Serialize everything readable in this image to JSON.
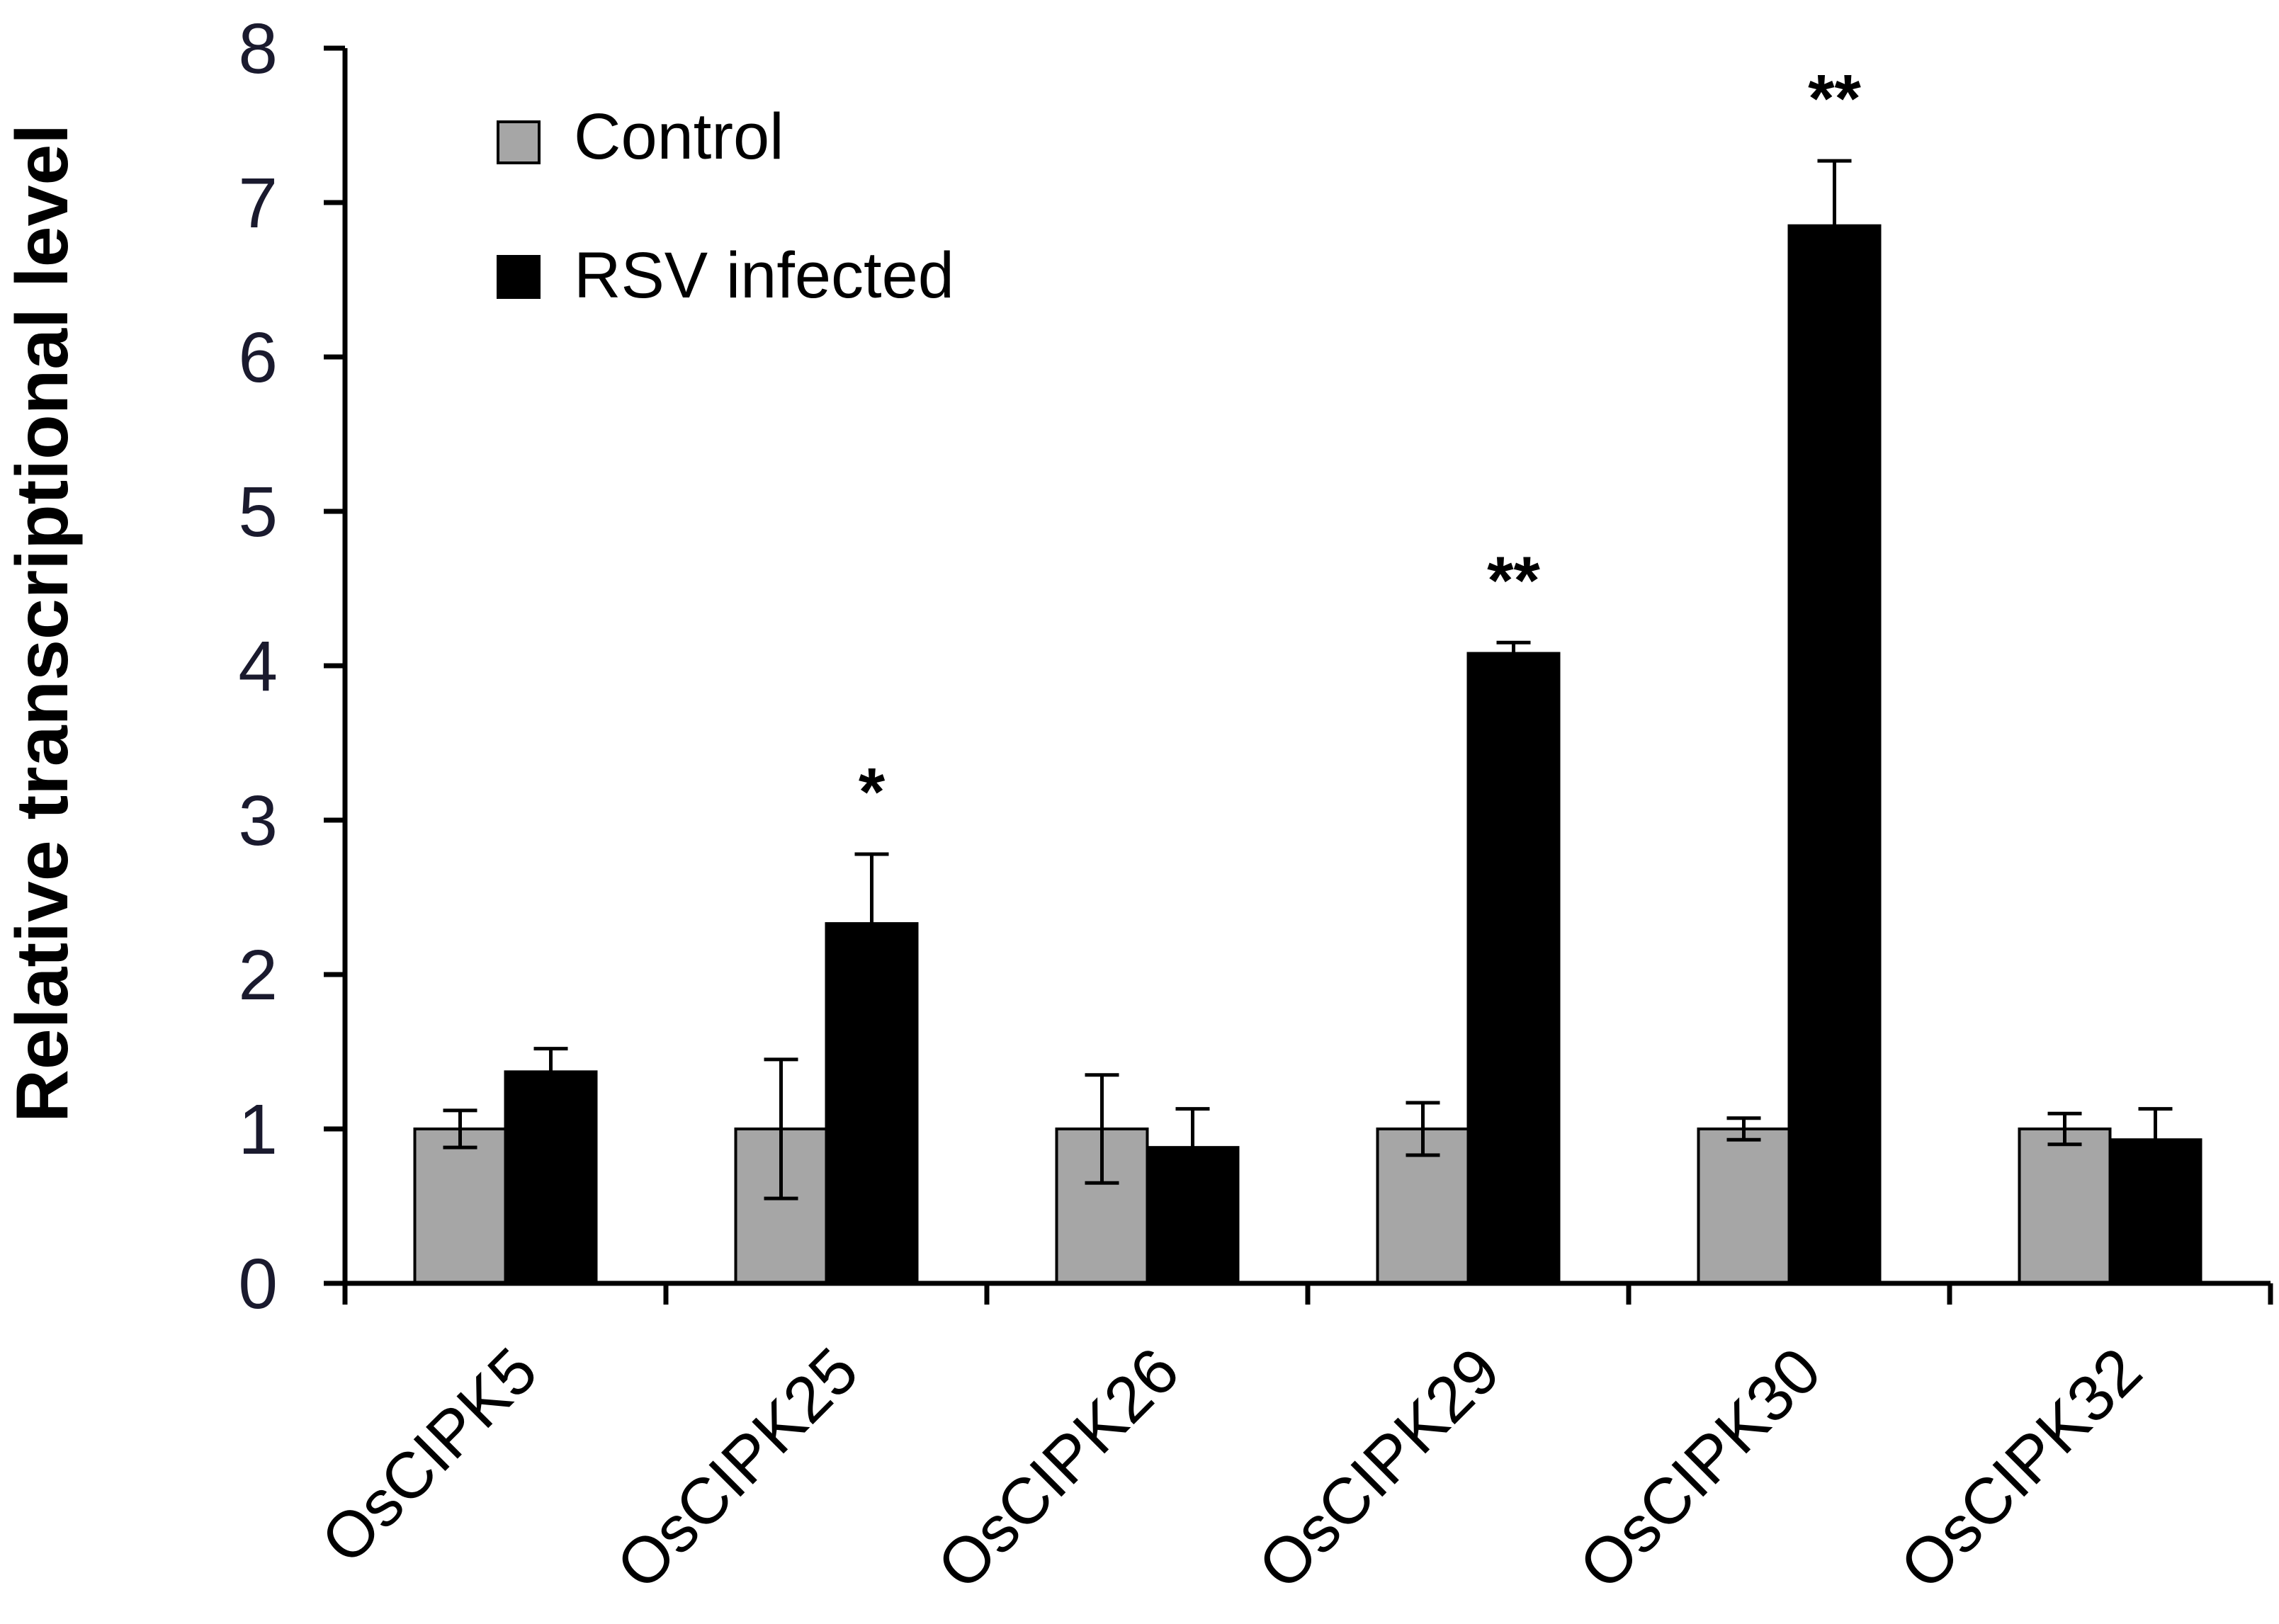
{
  "chart_data": {
    "type": "bar",
    "title": "",
    "xlabel": "",
    "ylabel": "Relative transcriptional level",
    "ylim": [
      0,
      8
    ],
    "yticks": [
      0,
      1,
      2,
      3,
      4,
      5,
      6,
      7,
      8
    ],
    "categories": [
      "OsCIPK5",
      "OsCIPK25",
      "OsCIPK26",
      "OsCIPK29",
      "OsCIPK30",
      "OsCIPK32"
    ],
    "series": [
      {
        "name": "Control",
        "color": "#a6a6a6",
        "values": [
          1.0,
          1.0,
          1.0,
          1.0,
          1.0,
          1.0
        ],
        "errors": [
          0.12,
          0.45,
          0.35,
          0.17,
          0.07,
          0.1
        ]
      },
      {
        "name": "RSV infected",
        "color": "#000000",
        "values": [
          1.37,
          2.33,
          0.88,
          4.08,
          6.85,
          0.93
        ],
        "errors": [
          0.15,
          0.45,
          0.25,
          0.07,
          0.42,
          0.2
        ]
      }
    ],
    "significance": [
      "",
      "*",
      "",
      "**",
      "**",
      ""
    ],
    "legend_position": "top-left"
  }
}
